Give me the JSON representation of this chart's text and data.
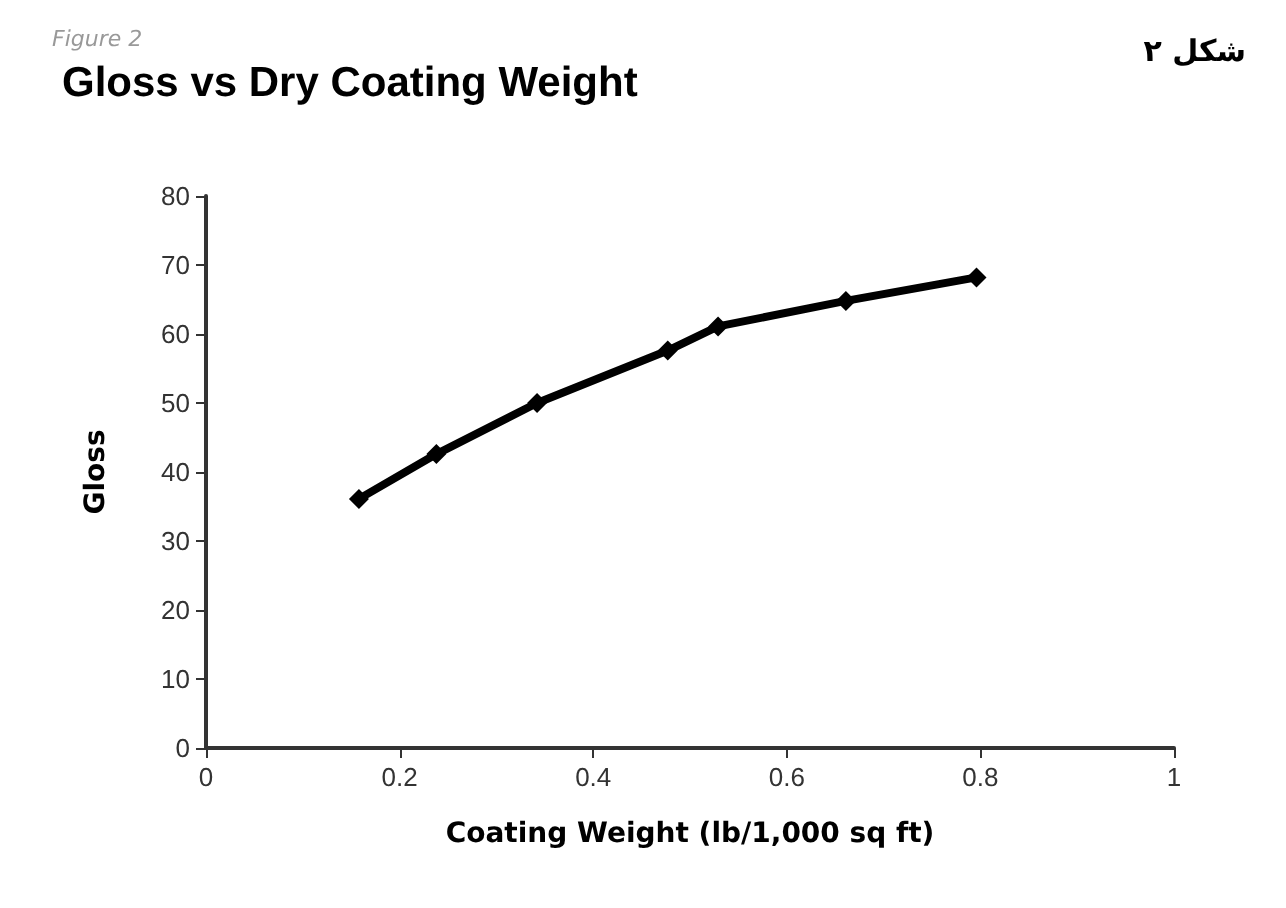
{
  "chart_data": {
    "type": "line",
    "title": "Gloss vs Dry Coating Weight",
    "xlabel": "Coating Weight (lb/1,000 sq ft)",
    "ylabel": "Gloss",
    "annotations": [
      "Figure 2",
      "شکل ۲"
    ],
    "x": [
      0.158,
      0.238,
      0.342,
      0.477,
      0.529,
      0.661,
      0.796
    ],
    "series": [
      {
        "color": "#000000",
        "values": [
          36.1,
          42.6,
          50.0,
          57.6,
          61.1,
          64.8,
          68.2
        ]
      }
    ],
    "xlim": [
      0,
      1
    ],
    "xticks": [
      0,
      0.2,
      0.4,
      0.6,
      0.8,
      1
    ],
    "ylim": [
      0,
      80
    ],
    "yticks": [
      0,
      10,
      20,
      30,
      40,
      50,
      60,
      70,
      80
    ],
    "grid": false,
    "marker": "diamond",
    "line_style": "solid"
  }
}
